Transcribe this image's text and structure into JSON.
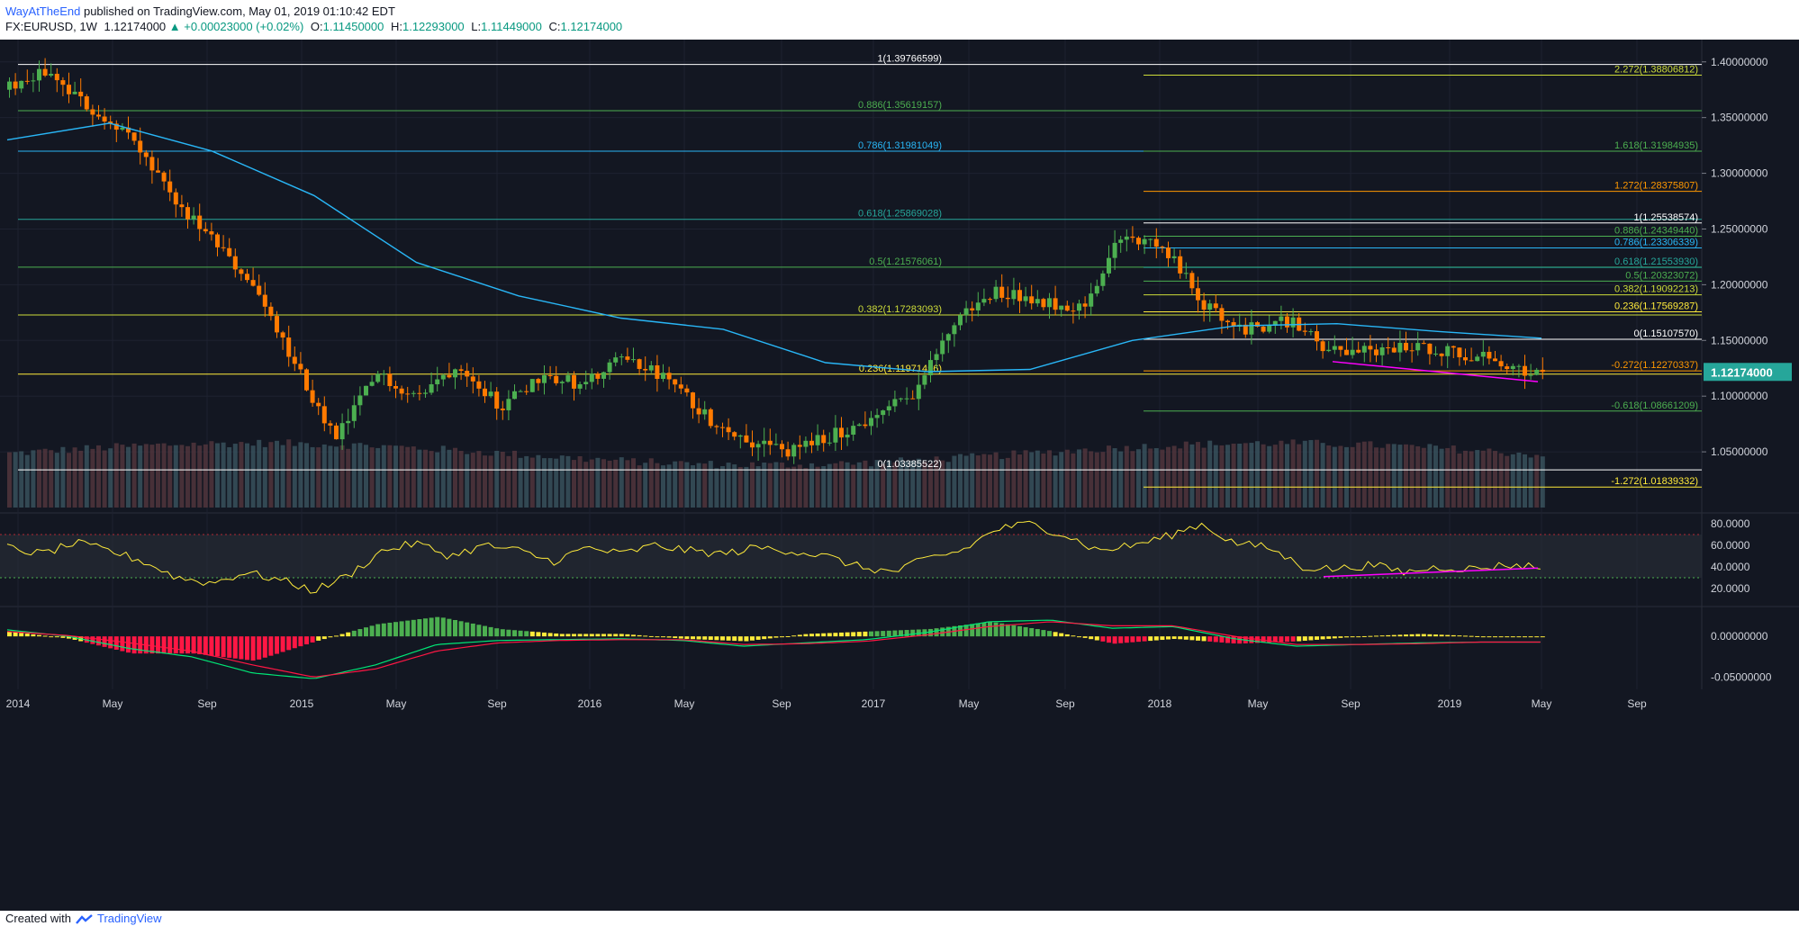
{
  "header": {
    "author": "WayAtTheEnd",
    "published_text": "published on TradingView.com, May 01, 2019 01:10:42 EDT",
    "symbol": "FX:EURUSD, 1W",
    "last": "1.12174000",
    "change": "+0.00023000 (+0.02%)",
    "o_label": "O:",
    "o": "1.11450000",
    "h_label": "H:",
    "h": "1.12293000",
    "l_label": "L:",
    "l": "1.11449000",
    "c_label": "C:",
    "c": "1.12174000"
  },
  "footer": {
    "created_with": "Created with",
    "brand": "TradingView"
  },
  "colors": {
    "bg": "#131722",
    "grid": "#1e2230",
    "text_axis": "#d1d4dc",
    "up": "#4caf50",
    "down": "#ff7a00",
    "ma": "#29b6f6",
    "rsi": "#ffeb3b",
    "trend": "#ff00ff",
    "price_tag": "#26a69a"
  },
  "chart_data": {
    "type": "candlestick",
    "symbol": "EURUSD",
    "timeframe": "1W",
    "price_ylim": [
      1.0,
      1.42
    ],
    "price_ticks": [
      "1.40000000",
      "1.35000000",
      "1.30000000",
      "1.25000000",
      "1.20000000",
      "1.15000000",
      "1.10000000",
      "1.05000000"
    ],
    "last_price": "1.12174000",
    "x_labels": [
      "2014",
      "May",
      "Sep",
      "2015",
      "May",
      "Sep",
      "2016",
      "May",
      "Sep",
      "2017",
      "May",
      "Sep",
      "2018",
      "May",
      "Sep",
      "2019",
      "May",
      "Sep"
    ],
    "price_path": [
      1.375,
      1.392,
      1.36,
      1.335,
      1.28,
      1.24,
      1.2,
      1.13,
      1.06,
      1.12,
      1.1,
      1.13,
      1.09,
      1.12,
      1.11,
      1.135,
      1.115,
      1.08,
      1.06,
      1.05,
      1.065,
      1.08,
      1.105,
      1.17,
      1.195,
      1.185,
      1.18,
      1.245,
      1.232,
      1.18,
      1.16,
      1.168,
      1.14,
      1.14,
      1.145,
      1.14,
      1.132,
      1.12
    ],
    "ma_path": [
      1.33,
      1.345,
      1.32,
      1.28,
      1.22,
      1.19,
      1.17,
      1.16,
      1.13,
      1.122,
      1.124,
      1.15,
      1.163,
      1.165,
      1.158,
      1.152
    ],
    "fib_left": [
      {
        "label": "1(1.39766599)",
        "value": 1.39766599,
        "color": "#ffffff"
      },
      {
        "label": "0.886(1.35619157)",
        "value": 1.35619157,
        "color": "#4caf50"
      },
      {
        "label": "0.786(1.31981049)",
        "value": 1.31981049,
        "color": "#29b6f6"
      },
      {
        "label": "0.618(1.25869028)",
        "value": 1.25869028,
        "color": "#26a69a"
      },
      {
        "label": "0.5(1.21576061)",
        "value": 1.21576061,
        "color": "#4caf50"
      },
      {
        "label": "0.382(1.17283093)",
        "value": 1.17283093,
        "color": "#cddc39"
      },
      {
        "label": "0.236(1.11971456)",
        "value": 1.11971456,
        "color": "#ffeb3b"
      },
      {
        "label": "0(1.03385522)",
        "value": 1.03385522,
        "color": "#ffffff"
      }
    ],
    "fib_right": [
      {
        "label": "2.272(1.38806812)",
        "value": 1.38806812,
        "color": "#cddc39"
      },
      {
        "label": "1.618(1.31984935)",
        "value": 1.31984935,
        "color": "#4caf50"
      },
      {
        "label": "1.272(1.28375807)",
        "value": 1.28375807,
        "color": "#ff9800"
      },
      {
        "label": "1(1.25538574)",
        "value": 1.25538574,
        "color": "#ffffff"
      },
      {
        "label": "0.886(1.24349440)",
        "value": 1.2434944,
        "color": "#4caf50"
      },
      {
        "label": "0.786(1.23306339)",
        "value": 1.23306339,
        "color": "#29b6f6"
      },
      {
        "label": "0.618(1.21553930)",
        "value": 1.2155393,
        "color": "#26a69a"
      },
      {
        "label": "0.5(1.20323072)",
        "value": 1.20323072,
        "color": "#4caf50"
      },
      {
        "label": "0.382(1.19092213)",
        "value": 1.19092213,
        "color": "#cddc39"
      },
      {
        "label": "0.236(1.17569287)",
        "value": 1.17569287,
        "color": "#ffeb3b"
      },
      {
        "label": "0(1.15107570)",
        "value": 1.1510757,
        "color": "#ffffff"
      },
      {
        "label": "-0.272(1.12270337)",
        "value": 1.12270337,
        "color": "#ff9800"
      },
      {
        "label": "-0.618(1.08661209)",
        "value": 1.08661209,
        "color": "#4caf50"
      },
      {
        "label": "-1.272(1.01839332)",
        "value": 1.01839332,
        "color": "#ffeb3b"
      }
    ],
    "rsi": {
      "ylim": [
        10,
        85
      ],
      "ticks": [
        "80.0000",
        "60.0000",
        "40.0000",
        "20.0000"
      ],
      "band": [
        30,
        70
      ],
      "path": [
        58,
        52,
        62,
        55,
        45,
        30,
        25,
        35,
        28,
        18,
        32,
        55,
        62,
        50,
        60,
        55,
        45,
        58,
        52,
        60,
        55,
        52,
        58,
        55,
        50,
        40,
        35,
        48,
        55,
        75,
        80,
        70,
        55,
        60,
        68,
        80,
        62,
        58,
        40,
        38,
        42,
        35,
        40,
        38,
        42,
        40
      ]
    },
    "macd": {
      "ylim": [
        -0.065,
        0.03
      ],
      "ticks": [
        "0.00000000",
        "-0.05000000"
      ],
      "macd_path": [
        0.008,
        0.0,
        -0.015,
        -0.025,
        -0.045,
        -0.052,
        -0.035,
        -0.01,
        -0.005,
        -0.004,
        -0.003,
        -0.005,
        -0.012,
        -0.008,
        -0.004,
        0.005,
        0.018,
        0.02,
        0.01,
        0.012,
        -0.003,
        -0.012,
        -0.01,
        -0.008,
        -0.007,
        -0.007
      ],
      "signal_path": [
        0.006,
        0.001,
        -0.008,
        -0.018,
        -0.035,
        -0.05,
        -0.04,
        -0.018,
        -0.008,
        -0.005,
        -0.004,
        -0.004,
        -0.01,
        -0.009,
        -0.006,
        0.002,
        0.012,
        0.018,
        0.013,
        0.013,
        0.0,
        -0.01,
        -0.01,
        -0.009,
        -0.007,
        -0.007
      ]
    }
  }
}
